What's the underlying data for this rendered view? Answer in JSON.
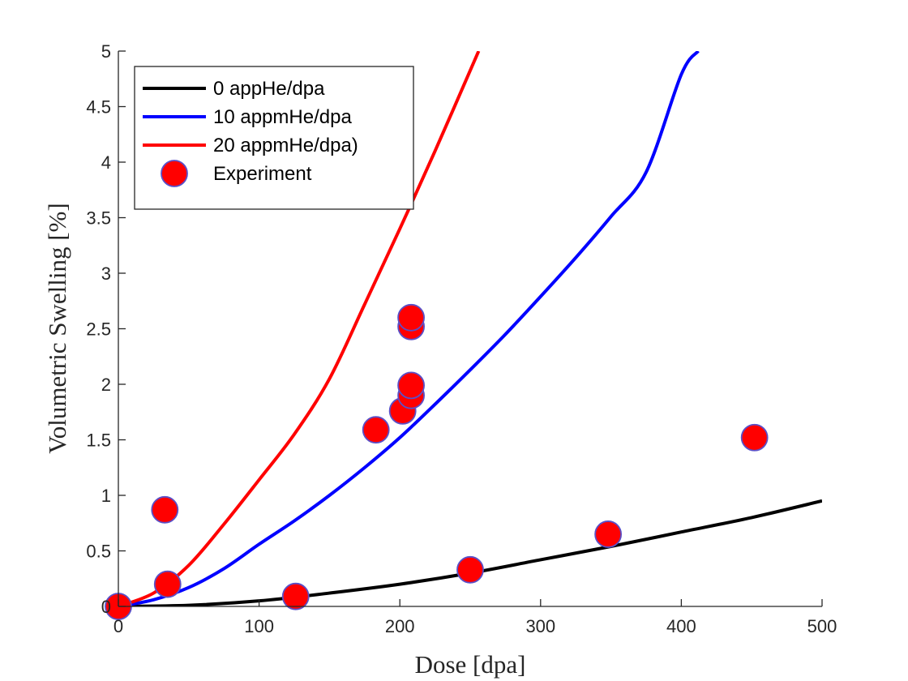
{
  "chart_data": {
    "type": "line",
    "title": "",
    "xlabel": "Dose [dpa]",
    "ylabel": "Volumetric Swelling [%]",
    "xlim": [
      0,
      500
    ],
    "ylim": [
      0,
      5
    ],
    "xticks": [
      0,
      100,
      200,
      300,
      400,
      500
    ],
    "yticks": [
      0,
      0.5,
      1,
      1.5,
      2,
      2.5,
      3,
      3.5,
      4,
      4.5,
      5
    ],
    "xtick_labels": [
      "0",
      "100",
      "200",
      "300",
      "400",
      "500"
    ],
    "ytick_labels": [
      "0",
      "0.5",
      "1",
      "1.5",
      "2",
      "2.5",
      "3",
      "3.5",
      "4",
      "4.5",
      "5"
    ],
    "grid": false,
    "legend_position": "top-left",
    "series": [
      {
        "name": "0 appHe/dpa",
        "kind": "line",
        "color": "#000000",
        "x": [
          0,
          50,
          100,
          150,
          200,
          250,
          300,
          350,
          400,
          450,
          500
        ],
        "y": [
          0,
          0.01,
          0.05,
          0.12,
          0.2,
          0.3,
          0.42,
          0.54,
          0.67,
          0.8,
          0.95
        ]
      },
      {
        "name": "10 appmHe/dpa",
        "kind": "line",
        "color": "#0000ff",
        "x": [
          0,
          25,
          50,
          75,
          100,
          125,
          150,
          175,
          200,
          225,
          250,
          275,
          300,
          325,
          350,
          375,
          400,
          412
        ],
        "y": [
          0,
          0.06,
          0.17,
          0.34,
          0.56,
          0.77,
          1.0,
          1.25,
          1.52,
          1.82,
          2.13,
          2.45,
          2.79,
          3.14,
          3.51,
          3.91,
          4.79,
          5.0
        ]
      },
      {
        "name": "20 appmHe/dpa)",
        "kind": "line",
        "color": "#ff0000",
        "x": [
          0,
          25,
          50,
          75,
          100,
          125,
          150,
          175,
          200,
          225,
          256
        ],
        "y": [
          0,
          0.12,
          0.37,
          0.74,
          1.14,
          1.55,
          2.05,
          2.72,
          3.4,
          4.1,
          5.0
        ]
      },
      {
        "name": "Experiment",
        "kind": "scatter",
        "color": "#ff0000",
        "edge_color": "#5a50c8",
        "x": [
          0,
          33,
          35,
          126,
          183,
          202,
          208,
          208,
          208,
          208,
          250,
          348,
          452
        ],
        "y": [
          0,
          0.87,
          0.2,
          0.09,
          1.59,
          1.76,
          1.9,
          1.99,
          2.52,
          2.6,
          0.33,
          0.65,
          1.52
        ]
      }
    ]
  }
}
